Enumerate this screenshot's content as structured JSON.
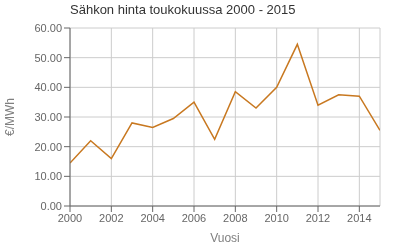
{
  "chart_data": {
    "type": "line",
    "title": "Sähkon hinta toukokuussa 2000 - 2015",
    "xlabel": "Vuosi",
    "ylabel": "€/MWh",
    "x": [
      2000,
      2001,
      2002,
      2003,
      2004,
      2005,
      2006,
      2007,
      2008,
      2009,
      2010,
      2011,
      2012,
      2013,
      2014,
      2015
    ],
    "values": [
      14.5,
      22.0,
      16.0,
      28.0,
      26.5,
      29.5,
      35.0,
      22.5,
      38.5,
      33.0,
      40.0,
      54.5,
      34.0,
      37.5,
      37.0,
      25.5
    ],
    "color": "#C87820",
    "xlim": [
      2000,
      2015
    ],
    "xticks": [
      2000,
      2002,
      2004,
      2006,
      2008,
      2010,
      2012,
      2014
    ],
    "ylim": [
      0,
      60
    ],
    "yticks": [
      {
        "value": 0,
        "label": "0.00"
      },
      {
        "value": 10,
        "label": "10.00"
      },
      {
        "value": 20,
        "label": "20.00"
      },
      {
        "value": 30,
        "label": "30.00"
      },
      {
        "value": 40,
        "label": "40.00"
      },
      {
        "value": 50,
        "label": "50.00"
      },
      {
        "value": 60,
        "label": "60.00"
      }
    ],
    "grid": true
  }
}
